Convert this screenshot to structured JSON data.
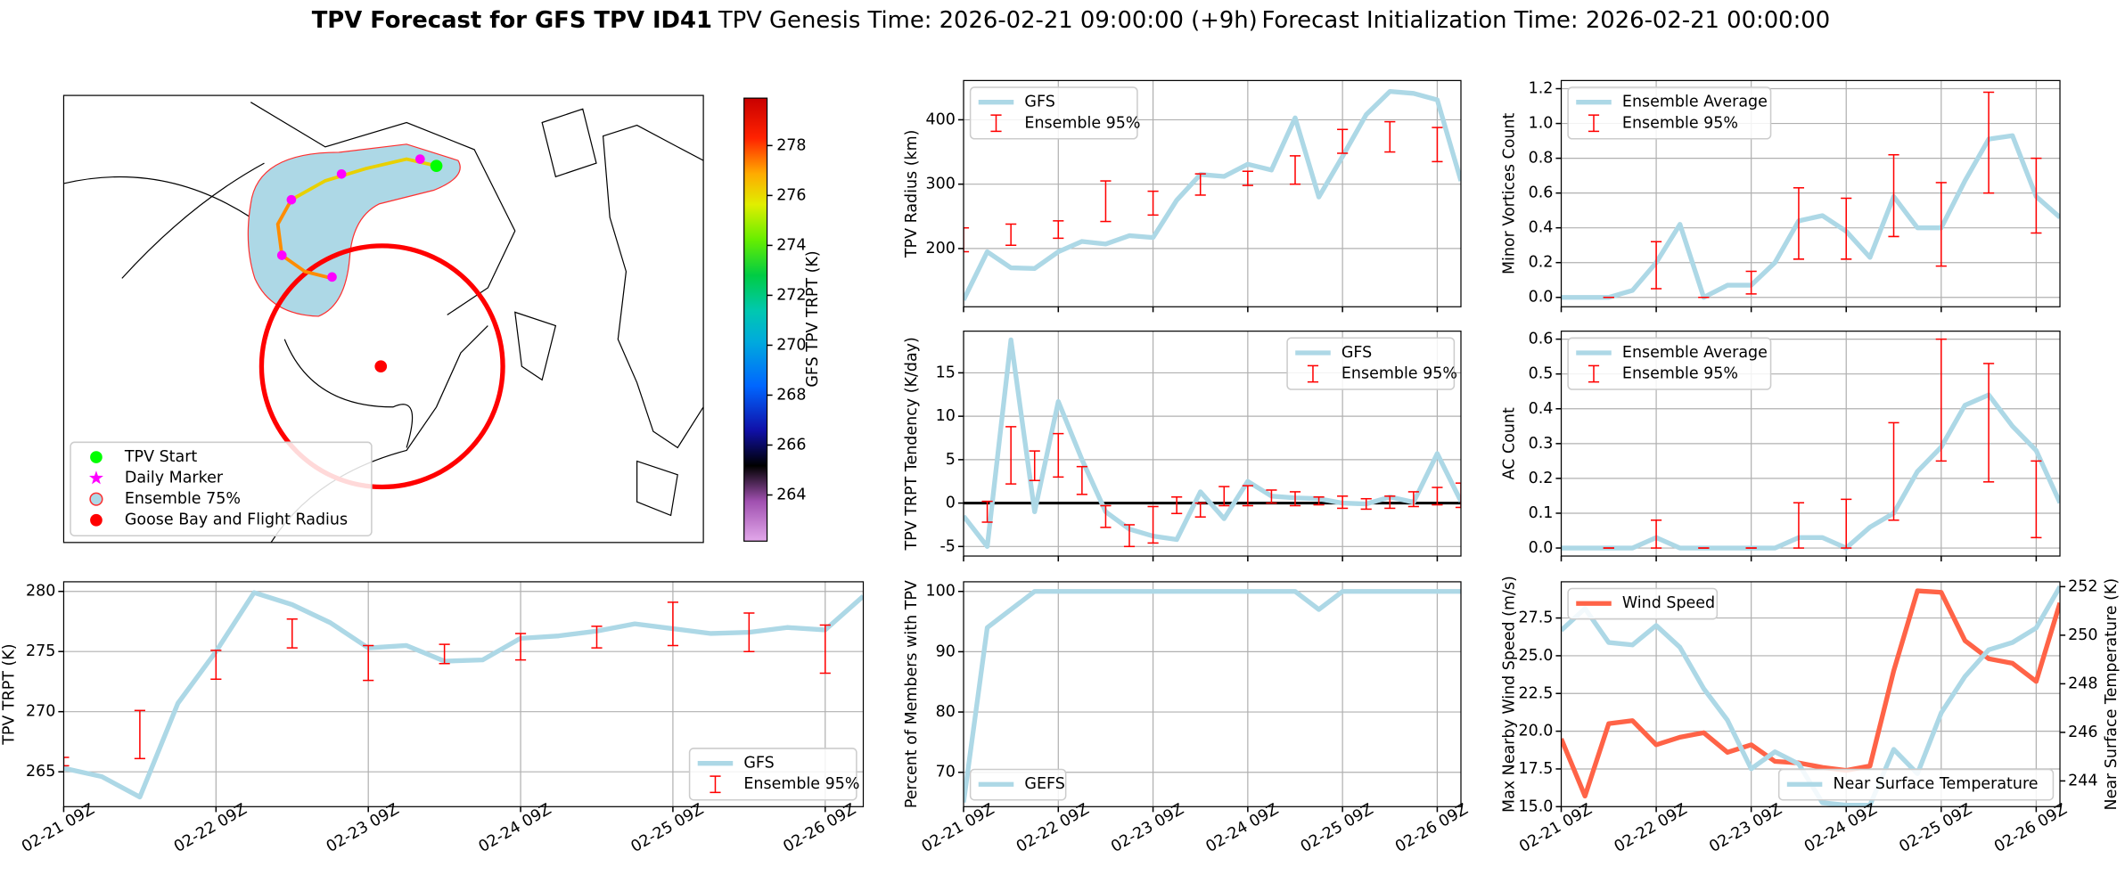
{
  "title": {
    "bold": "TPV Forecast for GFS TPV ID41",
    "genesis": "TPV Genesis Time: 2026-02-21 09:00:00 (+9h)",
    "init": "Forecast Initialization Time: 2026-02-21 00:00:00"
  },
  "chart_data": [
    {
      "type": "map",
      "colorbar_label": "GFS TPV TRPT (K)",
      "clim": [
        262.15,
        279.9
      ],
      "cticks": [
        264,
        266,
        268,
        270,
        272,
        274,
        276,
        278
      ],
      "legend": "lower left",
      "legend_entries": [
        {
          "name": "TPV Start",
          "color": "#00ff00",
          "marker": "circle"
        },
        {
          "name": "Daily Marker",
          "color": "#ff00ff",
          "marker": "star"
        },
        {
          "name": "Ensemble 75%",
          "color": "#add8e6",
          "marker": "ring"
        },
        {
          "name": "Goose Bay and Flight Radius",
          "color": "#ff0000",
          "marker": "circle"
        }
      ]
    },
    {
      "type": "line",
      "ylabel": "TPV Radius (km)",
      "xlim": [
        0,
        126
      ],
      "xticks": [
        0,
        24,
        48,
        72,
        96,
        120
      ],
      "ylim": [
        109.5,
        461
      ],
      "yticks": [
        200,
        300,
        400
      ],
      "grid": true,
      "legend": "upper left",
      "series": [
        {
          "name": "GFS",
          "color": "#add8e6",
          "x": [
            0,
            6,
            12,
            18,
            24,
            30,
            36,
            42,
            48,
            54,
            60,
            66,
            72,
            78,
            84,
            90,
            96,
            102,
            108,
            114,
            120,
            126
          ],
          "values": [
            120,
            195,
            170,
            169,
            195,
            211,
            207,
            220,
            217,
            275,
            315,
            312,
            331,
            322,
            403,
            280,
            343,
            408,
            444,
            441,
            431,
            305
          ]
        }
      ],
      "errorbars": {
        "name": "Ensemble 95%",
        "color": "#ff0000",
        "x": [
          0,
          12,
          24,
          36,
          48,
          60,
          72,
          84,
          96,
          108,
          120
        ],
        "low": [
          195,
          205,
          216,
          242,
          252,
          283,
          298,
          300,
          348,
          350,
          335
        ],
        "high": [
          232,
          238,
          243,
          305,
          289,
          316,
          320,
          344,
          385,
          397,
          388
        ]
      }
    },
    {
      "type": "line",
      "ylabel": "Minor Vortices Count",
      "xlim": [
        0,
        126
      ],
      "xticks": [
        0,
        24,
        48,
        72,
        96,
        120
      ],
      "ylim": [
        -0.054,
        1.247
      ],
      "yticks": [
        {
          "value": 0,
          "label": "0.0"
        },
        0.2,
        0.4,
        0.6,
        0.8,
        {
          "value": 1,
          "label": "1.0"
        },
        1.2
      ],
      "grid": true,
      "legend": "upper left",
      "series": [
        {
          "name": "Ensemble Average",
          "color": "#add8e6",
          "x": [
            0,
            6,
            12,
            18,
            24,
            30,
            36,
            42,
            48,
            54,
            60,
            66,
            72,
            78,
            84,
            90,
            96,
            102,
            108,
            114,
            120,
            126
          ],
          "values": [
            0,
            0,
            0,
            0.04,
            0.2,
            0.42,
            0,
            0.07,
            0.07,
            0.2,
            0.44,
            0.47,
            0.38,
            0.23,
            0.58,
            0.4,
            0.4,
            0.67,
            0.91,
            0.93,
            0.58,
            0.46
          ]
        }
      ],
      "errorbars": {
        "name": "Ensemble 95%",
        "color": "#ff0000",
        "x": [
          12,
          24,
          36,
          48,
          60,
          72,
          84,
          96,
          108,
          120
        ],
        "low": [
          0,
          0.05,
          0,
          0.02,
          0.22,
          0.22,
          0.35,
          0.18,
          0.6,
          0.37
        ],
        "high": [
          0,
          0.32,
          0,
          0.15,
          0.63,
          0.57,
          0.82,
          0.66,
          1.18,
          0.8
        ]
      }
    },
    {
      "type": "line",
      "ylabel": "TPV TRPT Tendency (K/day)",
      "xlim": [
        0,
        126
      ],
      "xticks": [
        0,
        24,
        48,
        72,
        96,
        120
      ],
      "ylim": [
        -6.1,
        19.8
      ],
      "yticks": [
        -5,
        0,
        5,
        10,
        15
      ],
      "grid": true,
      "legend": "upper right",
      "hline": 0,
      "series": [
        {
          "name": "GFS",
          "color": "#add8e6",
          "x": [
            0,
            6,
            12,
            18,
            24,
            30,
            36,
            42,
            48,
            54,
            60,
            66,
            72,
            78,
            84,
            90,
            96,
            102,
            108,
            114,
            120,
            126
          ],
          "values": [
            -1.5,
            -5,
            18.8,
            -1,
            11.7,
            5,
            -1,
            -3,
            -3.8,
            -4.2,
            1.3,
            -1.8,
            2.5,
            0.8,
            0.6,
            0.5,
            0,
            -0.1,
            0.7,
            0.1,
            5.7,
            0.2
          ]
        }
      ],
      "errorbars": {
        "name": "Ensemble 95%",
        "color": "#ff0000",
        "x": [
          6,
          12,
          18,
          24,
          30,
          36,
          42,
          48,
          54,
          60,
          66,
          72,
          78,
          84,
          90,
          96,
          102,
          108,
          114,
          120,
          126
        ],
        "low": [
          -2.2,
          2.2,
          2.6,
          3,
          1,
          -2.8,
          -5,
          -4.6,
          -1.2,
          -1.6,
          -0.3,
          -0.3,
          0,
          -0.3,
          -0.2,
          -0.6,
          -0.7,
          -0.6,
          -0.4,
          -0.2,
          -0.5
        ],
        "high": [
          0.2,
          8.8,
          6,
          8,
          4.2,
          -0.3,
          -2.5,
          -0.4,
          0.7,
          0,
          1.9,
          2,
          1.5,
          1.3,
          0.7,
          0.8,
          0.5,
          0.8,
          1.3,
          1.8,
          2.3
        ]
      }
    },
    {
      "type": "line",
      "ylabel": "AC Count",
      "xlim": [
        0,
        126
      ],
      "xticks": [
        0,
        24,
        48,
        72,
        96,
        120
      ],
      "ylim": [
        -0.023,
        0.623
      ],
      "yticks": [
        {
          "value": 0,
          "label": "0.0"
        },
        0.1,
        0.2,
        0.3,
        0.4,
        0.5,
        0.6
      ],
      "grid": true,
      "legend": "upper left",
      "series": [
        {
          "name": "Ensemble Average",
          "color": "#add8e6",
          "x": [
            0,
            6,
            12,
            18,
            24,
            30,
            36,
            42,
            48,
            54,
            60,
            66,
            72,
            78,
            84,
            90,
            96,
            102,
            108,
            114,
            120,
            126
          ],
          "values": [
            0,
            0,
            0,
            0,
            0.03,
            0,
            0,
            0,
            0,
            0,
            0.03,
            0.03,
            0,
            0.06,
            0.1,
            0.22,
            0.29,
            0.41,
            0.44,
            0.35,
            0.28,
            0.13
          ]
        }
      ],
      "errorbars": {
        "name": "Ensemble 95%",
        "color": "#ff0000",
        "x": [
          12,
          24,
          36,
          48,
          60,
          72,
          84,
          96,
          108,
          120
        ],
        "low": [
          0,
          0,
          0,
          0,
          0,
          0,
          0.08,
          0.25,
          0.19,
          0.03
        ],
        "high": [
          0,
          0.08,
          0,
          0,
          0.13,
          0.14,
          0.36,
          0.6,
          0.53,
          0.25
        ]
      }
    },
    {
      "type": "line",
      "ylabel": "TPV TRPT (K)",
      "xlim": [
        0,
        126
      ],
      "xticks": [
        {
          "value": 0,
          "label": "02-21 09Z"
        },
        {
          "value": 24,
          "label": "02-22 09Z"
        },
        {
          "value": 48,
          "label": "02-23 09Z"
        },
        {
          "value": 72,
          "label": "02-24 09Z"
        },
        {
          "value": 96,
          "label": "02-25 09Z"
        },
        {
          "value": 120,
          "label": "02-26 09Z"
        }
      ],
      "ylim": [
        262.1,
        280.8
      ],
      "yticks": [
        265,
        270,
        275,
        280
      ],
      "grid": true,
      "legend": "lower right",
      "series": [
        {
          "name": "GFS",
          "color": "#add8e6",
          "x": [
            0,
            6,
            12,
            18,
            24,
            30,
            36,
            42,
            48,
            54,
            60,
            66,
            72,
            78,
            84,
            90,
            96,
            102,
            108,
            114,
            120,
            126
          ],
          "values": [
            265.3,
            264.6,
            262.9,
            270.7,
            275,
            279.9,
            278.9,
            277.4,
            275.3,
            275.5,
            274.2,
            274.3,
            276.1,
            276.3,
            276.7,
            277.3,
            276.9,
            276.5,
            276.6,
            277,
            276.8,
            279.6
          ]
        }
      ],
      "errorbars": {
        "name": "Ensemble 95%",
        "color": "#ff0000",
        "x": [
          0,
          12,
          24,
          36,
          48,
          60,
          72,
          84,
          96,
          108,
          120
        ],
        "low": [
          265.5,
          266.1,
          272.7,
          275.3,
          272.6,
          274,
          274.3,
          275.3,
          275.5,
          275,
          273.2
        ],
        "high": [
          266.2,
          270.1,
          275.1,
          277.7,
          275.5,
          275.6,
          276.5,
          277.1,
          279.1,
          278.2,
          277.2
        ]
      }
    },
    {
      "type": "line",
      "ylabel": "Percent of Members with TPV",
      "xlim": [
        0,
        126
      ],
      "xticks": [
        {
          "value": 0,
          "label": "02-21 09Z"
        },
        {
          "value": 24,
          "label": "02-22 09Z"
        },
        {
          "value": 48,
          "label": "02-23 09Z"
        },
        {
          "value": 72,
          "label": "02-24 09Z"
        },
        {
          "value": 96,
          "label": "02-25 09Z"
        },
        {
          "value": 120,
          "label": "02-26 09Z"
        }
      ],
      "ylim": [
        64.3,
        101.6
      ],
      "yticks": [
        70,
        80,
        90,
        100
      ],
      "grid": true,
      "legend": "lower left",
      "series": [
        {
          "name": "GEFS",
          "color": "#add8e6",
          "x": [
            0,
            6,
            12,
            18,
            24,
            30,
            36,
            42,
            48,
            54,
            60,
            66,
            72,
            78,
            84,
            90,
            96,
            102,
            108,
            114,
            120,
            126
          ],
          "values": [
            65,
            94,
            97,
            100,
            100,
            100,
            100,
            100,
            100,
            100,
            100,
            100,
            100,
            100,
            100,
            97,
            100,
            100,
            100,
            100,
            100,
            100
          ]
        }
      ]
    },
    {
      "type": "line",
      "ylabel": "Max Nearby Wind Speed (m/s)",
      "ylabel_color": "#ff6347",
      "y2label": "Near Surface Temperature (K)",
      "y2label_color": "#4169e1",
      "xlim": [
        0,
        126
      ],
      "xticks": [
        {
          "value": 0,
          "label": "02-21 09Z"
        },
        {
          "value": 24,
          "label": "02-22 09Z"
        },
        {
          "value": 48,
          "label": "02-23 09Z"
        },
        {
          "value": 72,
          "label": "02-24 09Z"
        },
        {
          "value": 96,
          "label": "02-25 09Z"
        },
        {
          "value": 120,
          "label": "02-26 09Z"
        }
      ],
      "ylim": [
        15,
        29.9
      ],
      "yticks": [
        {
          "value": 15,
          "label": "15.0"
        },
        17.5,
        {
          "value": 20,
          "label": "20.0"
        },
        22.5,
        {
          "value": 25,
          "label": "25.0"
        },
        27.5
      ],
      "y2lim": [
        242.94,
        252.2
      ],
      "y2ticks": [
        244,
        246,
        248,
        250,
        252
      ],
      "grid": true,
      "legend": "upper left",
      "legend2": "lower right",
      "series": [
        {
          "name": "Wind Speed",
          "color": "#ff6347",
          "x": [
            0,
            6,
            12,
            18,
            24,
            30,
            36,
            42,
            48,
            54,
            60,
            66,
            72,
            78,
            84,
            90,
            96,
            102,
            108,
            114,
            120,
            126
          ],
          "values": [
            19.5,
            15.7,
            20.5,
            20.7,
            19.1,
            19.6,
            19.9,
            18.6,
            19.1,
            18,
            17.9,
            17.6,
            17.4,
            17.7,
            24,
            29.3,
            29.2,
            26,
            24.8,
            24.5,
            23.3,
            28.5
          ]
        },
        {
          "name": "Near Surface Temperature",
          "color": "#add8e6",
          "axis": "y2",
          "x": [
            0,
            6,
            12,
            18,
            24,
            30,
            36,
            42,
            48,
            54,
            60,
            66,
            72,
            78,
            84,
            90,
            96,
            102,
            108,
            114,
            120,
            126
          ],
          "values": [
            250.2,
            251.1,
            249.7,
            249.6,
            250.4,
            249.5,
            247.8,
            246.5,
            244.5,
            245.2,
            244.7,
            243.1,
            243,
            243,
            245.3,
            244.3,
            246.8,
            248.3,
            249.4,
            249.7,
            250.3,
            252
          ]
        }
      ]
    }
  ]
}
